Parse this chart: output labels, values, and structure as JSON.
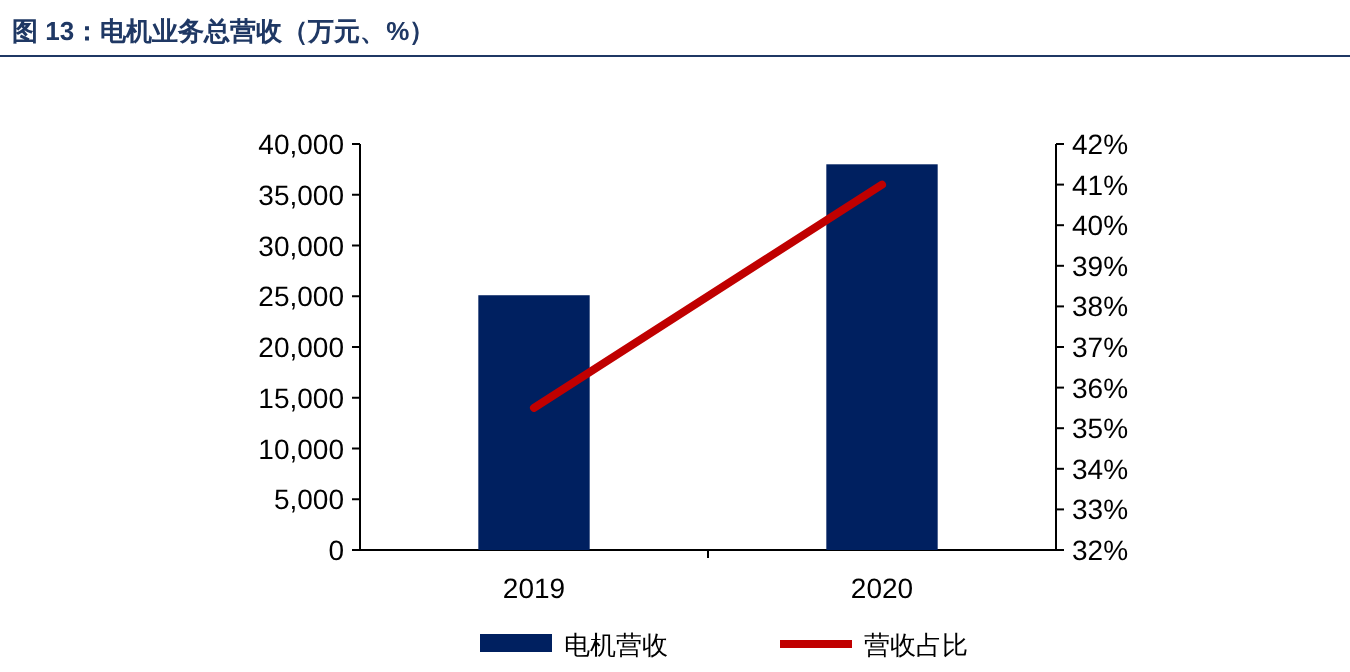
{
  "chart_data": {
    "type": "bar",
    "title": "图 13：电机业务总营收（万元、%）",
    "categories": [
      "2019",
      "2020"
    ],
    "series": [
      {
        "name": "电机营收",
        "color": "#002060",
        "values": [
          25100,
          38000
        ]
      },
      {
        "name": "营收占比",
        "type": "line",
        "axis": "y2",
        "color": "#c00000",
        "values": [
          35.5,
          41.0
        ]
      }
    ],
    "ylim": [
      0,
      40000
    ],
    "yticks": [
      0,
      {
        "value": 5000,
        "label": "5,000"
      },
      {
        "value": 10000,
        "label": "10,000"
      },
      {
        "value": 15000,
        "label": "15,000"
      },
      {
        "value": 20000,
        "label": "20,000"
      },
      {
        "value": 25000,
        "label": "25,000"
      },
      {
        "value": 30000,
        "label": "30,000"
      },
      {
        "value": 35000,
        "label": "35,000"
      },
      {
        "value": 40000,
        "label": "40,000"
      }
    ],
    "y2lim": [
      32,
      42
    ],
    "y2ticks": [
      {
        "value": 32,
        "label": "32%"
      },
      {
        "value": 33,
        "label": "33%"
      },
      {
        "value": 34,
        "label": "34%"
      },
      {
        "value": 35,
        "label": "35%"
      },
      {
        "value": 36,
        "label": "36%"
      },
      {
        "value": 37,
        "label": "37%"
      },
      {
        "value": 38,
        "label": "38%"
      },
      {
        "value": 39,
        "label": "39%"
      },
      {
        "value": 40,
        "label": "40%"
      },
      {
        "value": 41,
        "label": "41%"
      },
      {
        "value": 42,
        "label": "42%"
      }
    ],
    "legend": "bottom",
    "grid": false,
    "marker": "none"
  }
}
